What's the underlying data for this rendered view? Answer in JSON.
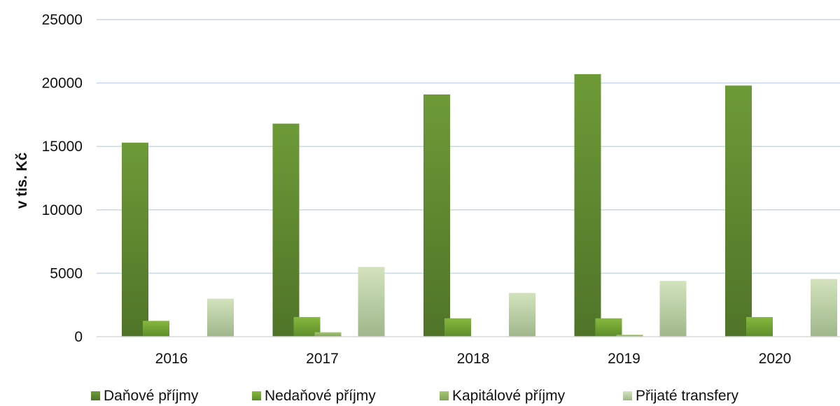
{
  "chart_data": {
    "type": "bar",
    "ylabel": "v tis. Kč",
    "xlabel": "",
    "ylim": [
      0,
      25000
    ],
    "yticks": [
      0,
      5000,
      10000,
      15000,
      20000,
      25000
    ],
    "grid": true,
    "legend_position": "bottom",
    "categories": [
      "2016",
      "2017",
      "2018",
      "2019",
      "2020"
    ],
    "series": [
      {
        "name": "Daňové příjmy",
        "color": "#5e8a2e",
        "values": [
          15300,
          16800,
          19100,
          20700,
          19800
        ]
      },
      {
        "name": "Nedaňové příjmy",
        "color": "#79ab35",
        "values": [
          1250,
          1550,
          1450,
          1450,
          1550
        ]
      },
      {
        "name": "Kapitálové příjmy",
        "color": "#9fbf6a",
        "values": [
          0,
          350,
          0,
          150,
          0
        ]
      },
      {
        "name": "Přijaté transfery",
        "color": "#c7d9ad",
        "values": [
          3000,
          5500,
          3450,
          4400,
          4550
        ]
      }
    ]
  }
}
